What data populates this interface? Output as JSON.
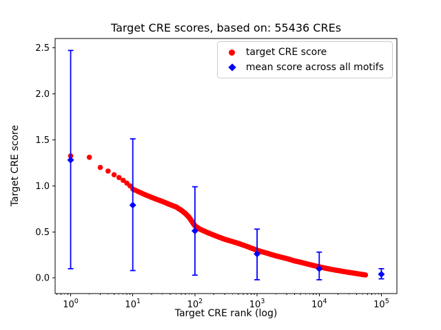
{
  "chart_data": {
    "type": "scatter",
    "title": "Target CRE scores, based on: 55436 CREs",
    "xlabel": "Target CRE rank (log)",
    "ylabel": "Target CRE score",
    "x_scale": "log",
    "xlim_log10": [
      -0.25,
      5.25
    ],
    "ylim": [
      -0.17,
      2.6
    ],
    "x_ticks_exponents": [
      0,
      1,
      2,
      3,
      4,
      5
    ],
    "y_ticks": [
      0.0,
      0.5,
      1.0,
      1.5,
      2.0,
      2.5
    ],
    "grid": false,
    "legend": {
      "position": "upper right",
      "entries": [
        {
          "label": "target CRE score",
          "marker": "circle",
          "color": "#ff0000"
        },
        {
          "label": "mean score across all motifs",
          "marker": "diamond",
          "color": "#0000ff"
        }
      ]
    },
    "series": [
      {
        "name": "target CRE score",
        "type": "dense-scatter",
        "color": "#ff0000",
        "marker": "circle",
        "max_rank": 55436,
        "anchors": {
          "rank": [
            1,
            2,
            3,
            4,
            5,
            6,
            7,
            8,
            9,
            10,
            12,
            15,
            20,
            25,
            30,
            40,
            50,
            60,
            70,
            80,
            90,
            100,
            120,
            150,
            200,
            300,
            400,
            500,
            700,
            1000,
            1500,
            2000,
            3000,
            4000,
            5000,
            7000,
            10000,
            15000,
            20000,
            30000,
            40000,
            50000,
            55436
          ],
          "score": [
            1.325,
            1.31,
            1.2,
            1.16,
            1.12,
            1.09,
            1.06,
            1.03,
            1.0,
            0.965,
            0.94,
            0.91,
            0.875,
            0.85,
            0.83,
            0.795,
            0.77,
            0.735,
            0.7,
            0.66,
            0.61,
            0.565,
            0.53,
            0.5,
            0.465,
            0.42,
            0.395,
            0.375,
            0.34,
            0.3,
            0.265,
            0.24,
            0.21,
            0.185,
            0.17,
            0.145,
            0.12,
            0.095,
            0.08,
            0.06,
            0.047,
            0.037,
            0.032
          ]
        }
      },
      {
        "name": "mean score across all motifs",
        "type": "errorbar",
        "color": "#0000ff",
        "marker": "diamond",
        "points": [
          {
            "x": 1,
            "mean": 1.28,
            "lo": 0.1,
            "hi": 2.47
          },
          {
            "x": 10,
            "mean": 0.79,
            "lo": 0.08,
            "hi": 1.51
          },
          {
            "x": 100,
            "mean": 0.51,
            "lo": 0.03,
            "hi": 0.99
          },
          {
            "x": 1000,
            "mean": 0.26,
            "lo": -0.02,
            "hi": 0.53
          },
          {
            "x": 10000,
            "mean": 0.1,
            "lo": -0.02,
            "hi": 0.28
          },
          {
            "x": 100000,
            "mean": 0.04,
            "lo": -0.01,
            "hi": 0.1
          }
        ]
      }
    ]
  }
}
